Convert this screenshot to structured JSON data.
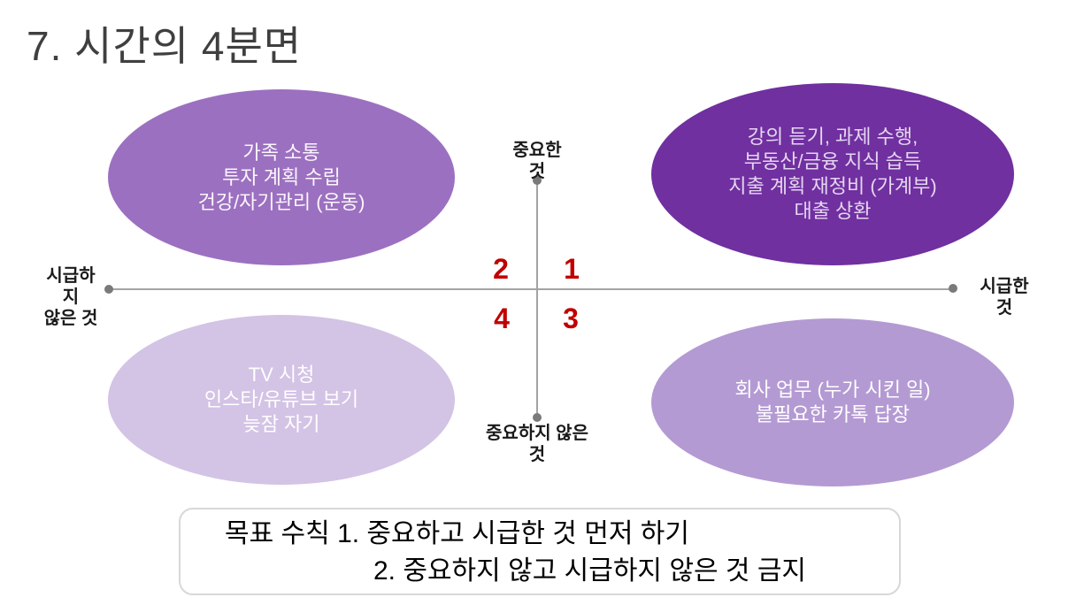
{
  "slide": {
    "title": "7. 시간의 4분면",
    "colors": {
      "quadrant1_fill": "#7030a0",
      "quadrant2_fill": "#9c70c0",
      "quadrant3_fill": "#b49ad3",
      "quadrant4_fill": "#d3c3e5",
      "quadrant_number_color": "#c00000",
      "axis_color": "#a3a3a3",
      "title_color": "#3f3f3f",
      "rule_box_border": "#d8d8d8"
    },
    "quadrant_ellipses": {
      "top_left": "가족 소통\n투자 계획 수립\n건강/자기관리 (운동)",
      "top_right": "강의 듣기, 과제 수행,\n부동산/금융 지식 습득\n지출 계획 재정비 (가계부)\n대출 상환",
      "bottom_left": "TV 시청\n인스타/유튜브 보기\n늦잠 자기",
      "bottom_right": "회사 업무 (누가 시킨 일)\n불필요한 카톡 답장"
    },
    "axis_labels": {
      "top": "중요한\n것",
      "bottom": "중요하지 않은\n것",
      "left": "시급하\n지\n않은 것",
      "right": "시급한\n것"
    },
    "quadrant_numbers": {
      "q1": "1",
      "q2": "2",
      "q3": "3",
      "q4": "4"
    },
    "rule_box": {
      "line1": "목표 수칙 1. 중요하고 시급한 것 먼저 하기",
      "line2": "2. 중요하지 않고 시급하지 않은 것 금지"
    }
  }
}
